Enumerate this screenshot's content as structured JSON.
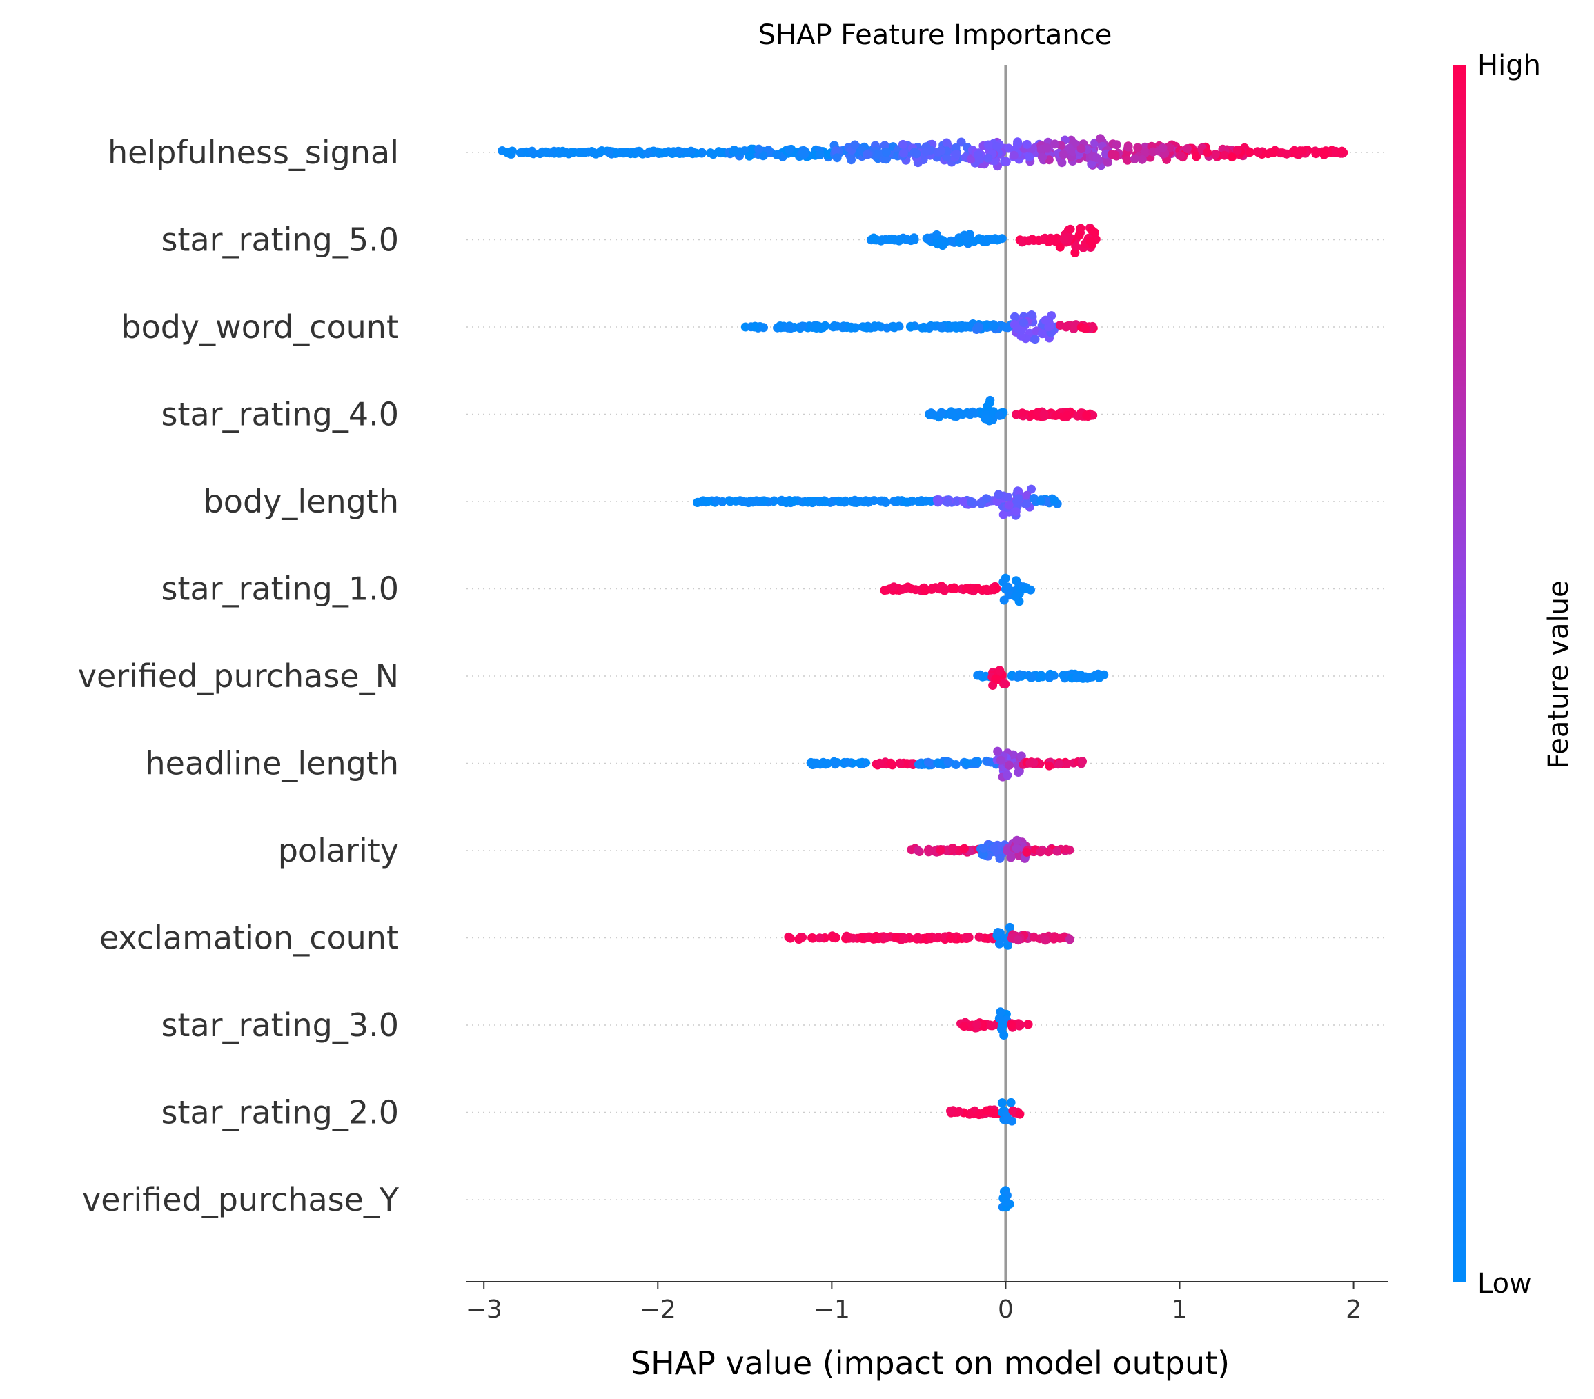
{
  "chart_data": {
    "type": "scatter",
    "subtype": "shap-beeswarm",
    "title": "SHAP Feature Importance",
    "xlabel": "SHAP value (impact on model output)",
    "xlim": [
      -3.1,
      2.2
    ],
    "xticks": [
      -3,
      -2,
      -1,
      0,
      1,
      2
    ],
    "xtick_labels": [
      "−3",
      "−2",
      "−1",
      "0",
      "1",
      "2"
    ],
    "zero_line": 0,
    "grid": "dotted row guides",
    "colorbar": {
      "title": "Feature value",
      "high_label": "High",
      "low_label": "Low",
      "low_color": "#008bfb",
      "mid_color": "#7c52ff",
      "high_color": "#ff0052"
    },
    "features": [
      {
        "name": "helpfulness_signal",
        "min": -2.9,
        "max": 1.95,
        "segments": [
          {
            "from": -2.9,
            "to": -1.6,
            "color": 0.0,
            "spread": 0.06
          },
          {
            "from": -1.6,
            "to": -1.0,
            "color": 0.05,
            "spread": 0.15
          },
          {
            "from": -1.0,
            "to": -0.6,
            "color": 0.2,
            "spread": 0.28
          },
          {
            "from": -0.6,
            "to": -0.2,
            "color": 0.35,
            "spread": 0.35
          },
          {
            "from": -0.2,
            "to": 0.2,
            "color": 0.5,
            "spread": 0.42
          },
          {
            "from": 0.2,
            "to": 0.6,
            "color": 0.65,
            "spread": 0.45
          },
          {
            "from": 0.6,
            "to": 1.0,
            "color": 0.8,
            "spread": 0.3
          },
          {
            "from": 1.0,
            "to": 1.4,
            "color": 0.92,
            "spread": 0.18
          },
          {
            "from": 1.4,
            "to": 1.95,
            "color": 1.0,
            "spread": 0.07
          }
        ]
      },
      {
        "name": "star_rating_5.0",
        "min": -0.78,
        "max": 0.52,
        "segments": [
          {
            "from": -0.78,
            "to": -0.4,
            "color": 0.0,
            "spread": 0.08
          },
          {
            "from": -0.4,
            "to": -0.2,
            "color": 0.0,
            "spread": 0.2
          },
          {
            "from": -0.2,
            "to": -0.01,
            "color": 0.0,
            "spread": 0.06
          },
          {
            "from": 0.07,
            "to": 0.3,
            "color": 1.0,
            "spread": 0.1
          },
          {
            "from": 0.3,
            "to": 0.52,
            "color": 1.0,
            "spread": 0.42
          }
        ]
      },
      {
        "name": "body_word_count",
        "min": -1.5,
        "max": 0.52,
        "segments": [
          {
            "from": -1.5,
            "to": -0.2,
            "color": 0.0,
            "spread": 0.05
          },
          {
            "from": -0.2,
            "to": 0.05,
            "color": 0.1,
            "spread": 0.12
          },
          {
            "from": 0.05,
            "to": 0.3,
            "color": 0.45,
            "spread": 0.42
          },
          {
            "from": 0.3,
            "to": 0.52,
            "color": 0.95,
            "spread": 0.08
          }
        ]
      },
      {
        "name": "star_rating_4.0",
        "min": -0.45,
        "max": 0.52,
        "segments": [
          {
            "from": -0.45,
            "to": -0.12,
            "color": 0.0,
            "spread": 0.1
          },
          {
            "from": -0.12,
            "to": -0.05,
            "color": 0.0,
            "spread": 0.45
          },
          {
            "from": -0.05,
            "to": 0.0,
            "color": 0.0,
            "spread": 0.12
          },
          {
            "from": 0.05,
            "to": 0.52,
            "color": 1.0,
            "spread": 0.1
          }
        ]
      },
      {
        "name": "body_length",
        "min": -1.78,
        "max": 0.3,
        "segments": [
          {
            "from": -1.78,
            "to": -0.4,
            "color": 0.0,
            "spread": 0.04
          },
          {
            "from": -0.4,
            "to": -0.05,
            "color": 0.4,
            "spread": 0.1
          },
          {
            "from": -0.05,
            "to": 0.15,
            "color": 0.45,
            "spread": 0.45
          },
          {
            "from": 0.15,
            "to": 0.3,
            "color": 0.1,
            "spread": 0.1
          }
        ]
      },
      {
        "name": "star_rating_1.0",
        "min": -0.7,
        "max": 0.15,
        "segments": [
          {
            "from": -0.7,
            "to": -0.05,
            "color": 1.0,
            "spread": 0.08
          },
          {
            "from": -0.02,
            "to": 0.08,
            "color": 0.0,
            "spread": 0.45
          },
          {
            "from": 0.08,
            "to": 0.15,
            "color": 0.0,
            "spread": 0.08
          }
        ]
      },
      {
        "name": "verified_purchase_N",
        "min": -0.18,
        "max": 0.57,
        "segments": [
          {
            "from": -0.18,
            "to": -0.08,
            "color": 0.0,
            "spread": 0.05
          },
          {
            "from": -0.08,
            "to": 0.0,
            "color": 1.0,
            "spread": 0.42
          },
          {
            "from": 0.0,
            "to": 0.57,
            "color": 0.0,
            "spread": 0.08
          }
        ]
      },
      {
        "name": "headline_length",
        "min": -1.15,
        "max": 0.45,
        "segments": [
          {
            "from": -1.15,
            "to": -0.8,
            "color": 0.0,
            "spread": 0.05
          },
          {
            "from": -0.75,
            "to": -0.5,
            "color": 1.0,
            "spread": 0.06
          },
          {
            "from": -0.5,
            "to": -0.05,
            "color": 0.1,
            "spread": 0.08
          },
          {
            "from": -0.05,
            "to": 0.1,
            "color": 0.6,
            "spread": 0.45
          },
          {
            "from": 0.1,
            "to": 0.45,
            "color": 0.95,
            "spread": 0.08
          }
        ]
      },
      {
        "name": "polarity",
        "min": -0.55,
        "max": 0.37,
        "segments": [
          {
            "from": -0.55,
            "to": -0.15,
            "color": 0.9,
            "spread": 0.08
          },
          {
            "from": -0.15,
            "to": 0.0,
            "color": 0.25,
            "spread": 0.3
          },
          {
            "from": 0.0,
            "to": 0.12,
            "color": 0.7,
            "spread": 0.45
          },
          {
            "from": 0.12,
            "to": 0.37,
            "color": 0.9,
            "spread": 0.1
          }
        ]
      },
      {
        "name": "exclamation_count",
        "min": -1.25,
        "max": 0.37,
        "segments": [
          {
            "from": -1.25,
            "to": -0.05,
            "color": 1.0,
            "spread": 0.06
          },
          {
            "from": -0.05,
            "to": 0.03,
            "color": 0.0,
            "spread": 0.45
          },
          {
            "from": 0.03,
            "to": 0.37,
            "color": 0.85,
            "spread": 0.1
          }
        ]
      },
      {
        "name": "star_rating_3.0",
        "min": -0.27,
        "max": 0.13,
        "segments": [
          {
            "from": -0.27,
            "to": -0.04,
            "color": 1.0,
            "spread": 0.1
          },
          {
            "from": -0.04,
            "to": 0.02,
            "color": 0.0,
            "spread": 0.45
          },
          {
            "from": 0.02,
            "to": 0.13,
            "color": 1.0,
            "spread": 0.08
          }
        ]
      },
      {
        "name": "star_rating_2.0",
        "min": -0.32,
        "max": 0.09,
        "segments": [
          {
            "from": -0.32,
            "to": -0.02,
            "color": 1.0,
            "spread": 0.1
          },
          {
            "from": -0.02,
            "to": 0.04,
            "color": 0.0,
            "spread": 0.45
          },
          {
            "from": 0.04,
            "to": 0.09,
            "color": 1.0,
            "spread": 0.06
          }
        ]
      },
      {
        "name": "verified_purchase_Y",
        "min": -0.02,
        "max": 0.03,
        "segments": [
          {
            "from": -0.02,
            "to": 0.03,
            "color": 0.0,
            "spread": 0.45
          }
        ]
      }
    ]
  }
}
